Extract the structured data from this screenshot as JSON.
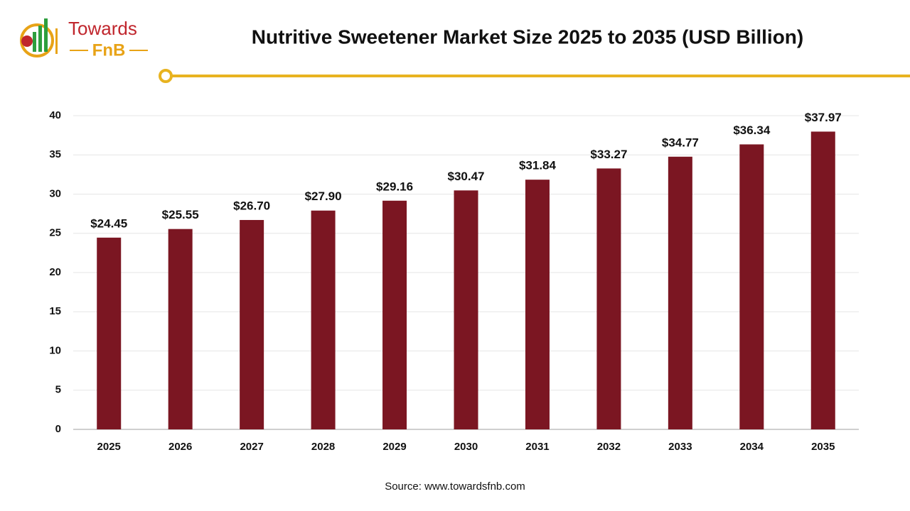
{
  "logo": {
    "line1": "Towards",
    "line2": "FnB"
  },
  "chart_data": {
    "type": "bar",
    "title": "Nutritive Sweetener Market Size 2025 to 2035 (USD Billion)",
    "categories": [
      "2025",
      "2026",
      "2027",
      "2028",
      "2029",
      "2030",
      "2031",
      "2032",
      "2033",
      "2034",
      "2035"
    ],
    "values": [
      24.45,
      25.55,
      26.7,
      27.9,
      29.16,
      30.47,
      31.84,
      33.27,
      34.77,
      36.34,
      37.97
    ],
    "value_labels": [
      "$24.45",
      "$25.55",
      "$26.70",
      "$27.90",
      "$29.16",
      "$30.47",
      "$31.84",
      "$33.27",
      "$34.77",
      "$36.34",
      "$37.97"
    ],
    "color": "#7b1622",
    "ylim": [
      0,
      40
    ],
    "yticks": [
      0,
      5,
      10,
      15,
      20,
      25,
      30,
      35,
      40
    ],
    "grid": true,
    "source": "Source: www.towardsfnb.com"
  }
}
